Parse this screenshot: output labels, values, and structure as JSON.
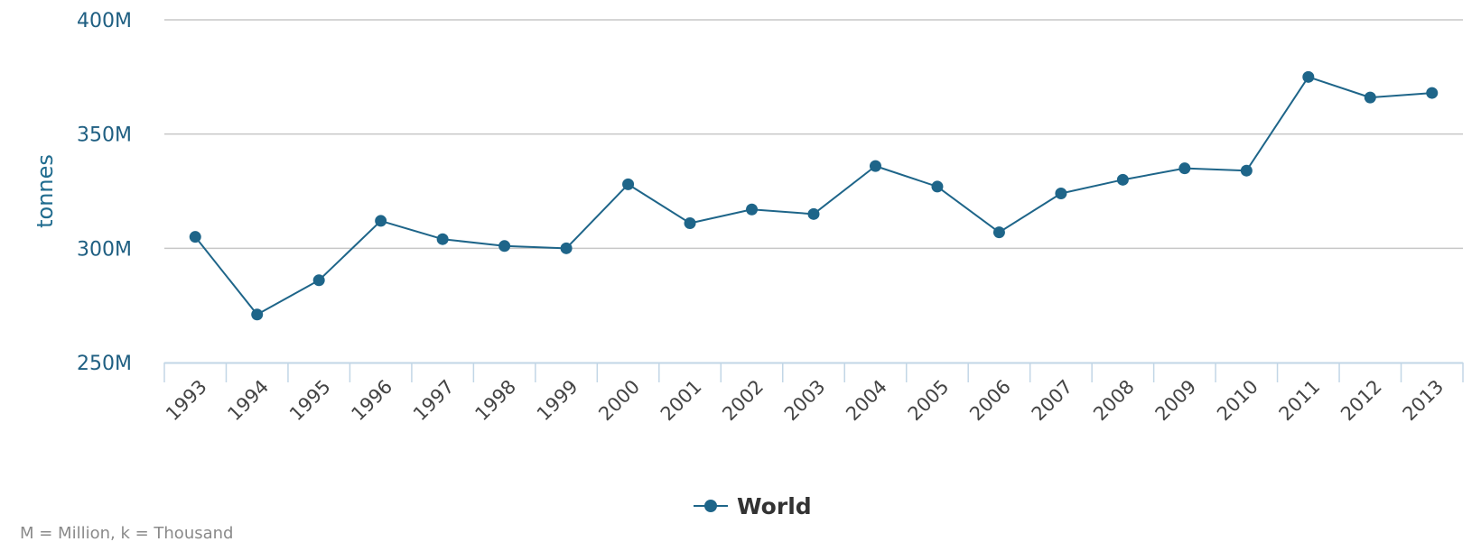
{
  "chart_data": {
    "type": "line",
    "title": "",
    "xlabel": "",
    "ylabel": "tonnes",
    "categories": [
      "1993",
      "1994",
      "1995",
      "1996",
      "1997",
      "1998",
      "1999",
      "2000",
      "2001",
      "2002",
      "2003",
      "2004",
      "2005",
      "2006",
      "2007",
      "2008",
      "2009",
      "2010",
      "2011",
      "2012",
      "2013"
    ],
    "series": [
      {
        "name": "World",
        "values": [
          305,
          271,
          286,
          312,
          304,
          301,
          300,
          328,
          311,
          317,
          315,
          336,
          327,
          307,
          324,
          330,
          335,
          334,
          375,
          366,
          368
        ]
      }
    ],
    "ylim": [
      250,
      400
    ],
    "y_ticks": [
      250,
      300,
      350,
      400
    ],
    "y_tick_labels": [
      "250M",
      "300M",
      "350M",
      "400M"
    ],
    "grid": true,
    "legend_position": "bottom-center"
  },
  "colors": {
    "series": "#1e6589",
    "grid": "#c7c7c7",
    "axis": "#c2d6e6"
  },
  "footnote": "M = Million, k = Thousand"
}
